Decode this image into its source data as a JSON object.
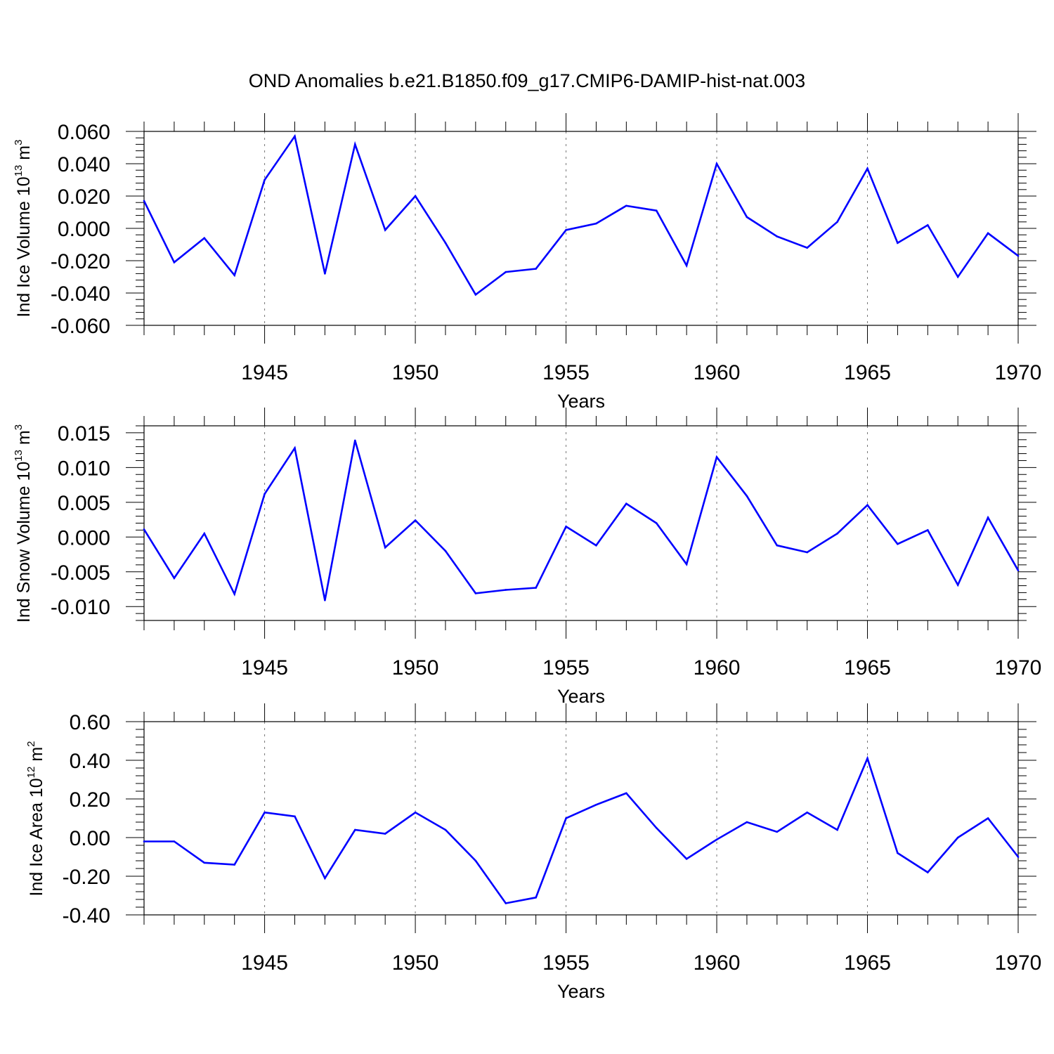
{
  "title": "OND Anomalies b.e21.B1850.f09_g17.CMIP6-DAMIP-hist-nat.003",
  "series_color": "#0000ff",
  "chart_data": [
    {
      "type": "line",
      "ylabel": {
        "base": "Ind Ice Volume 10",
        "exp": "13",
        "unit": " m",
        "unit_exp": "3"
      },
      "xlabel": "Years",
      "x": [
        1941,
        1942,
        1943,
        1944,
        1945,
        1946,
        1947,
        1948,
        1949,
        1950,
        1951,
        1952,
        1953,
        1954,
        1955,
        1956,
        1957,
        1958,
        1959,
        1960,
        1961,
        1962,
        1963,
        1964,
        1965,
        1966,
        1967,
        1968,
        1969,
        1970
      ],
      "values": [
        0.017,
        -0.021,
        -0.006,
        -0.029,
        0.03,
        0.057,
        -0.028,
        0.052,
        -0.001,
        0.02,
        -0.009,
        -0.041,
        -0.027,
        -0.025,
        -0.001,
        0.003,
        0.014,
        0.011,
        -0.023,
        0.04,
        0.007,
        -0.005,
        -0.012,
        0.004,
        0.037,
        -0.009,
        0.002,
        -0.03,
        -0.003,
        -0.017
      ],
      "xlim": [
        1941,
        1970
      ],
      "ylim": [
        -0.06,
        0.06
      ],
      "xticks": [
        1945,
        1950,
        1955,
        1960,
        1965,
        1970
      ],
      "yticks": [
        -0.06,
        -0.04,
        -0.02,
        0.0,
        0.02,
        0.04,
        0.06
      ],
      "yticklabels": [
        "-0.060",
        "-0.040",
        "-0.020",
        "0.000",
        "0.020",
        "0.040",
        "0.060"
      ],
      "grid": "dashed vertical at major x ticks"
    },
    {
      "type": "line",
      "ylabel": {
        "base": "Ind Snow Volume 10",
        "exp": "13",
        "unit": " m",
        "unit_exp": "3"
      },
      "xlabel": "Years",
      "x": [
        1941,
        1942,
        1943,
        1944,
        1945,
        1946,
        1947,
        1948,
        1949,
        1950,
        1951,
        1952,
        1953,
        1954,
        1955,
        1956,
        1957,
        1958,
        1959,
        1960,
        1961,
        1962,
        1963,
        1964,
        1965,
        1966,
        1967,
        1968,
        1969,
        1970
      ],
      "values": [
        0.0011,
        -0.0059,
        0.0005,
        -0.0082,
        0.0062,
        0.0128,
        -0.0091,
        0.0139,
        -0.0015,
        0.0024,
        -0.002,
        -0.0081,
        -0.0076,
        -0.0073,
        0.0015,
        -0.0012,
        0.0048,
        0.002,
        -0.0039,
        0.0115,
        0.0059,
        -0.0012,
        -0.0022,
        0.0005,
        0.0046,
        -0.001,
        0.001,
        -0.0069,
        0.0028,
        -0.0048
      ],
      "xlim": [
        1941,
        1970
      ],
      "ylim": [
        -0.012,
        0.016
      ],
      "xticks": [
        1945,
        1950,
        1955,
        1960,
        1965,
        1970
      ],
      "yticks": [
        -0.01,
        -0.005,
        0.0,
        0.005,
        0.01,
        0.015
      ],
      "yticklabels": [
        "-0.010",
        "-0.005",
        "0.000",
        "0.005",
        "0.010",
        "0.015"
      ],
      "grid": "dashed vertical at major x ticks"
    },
    {
      "type": "line",
      "ylabel": {
        "base": "Ind Ice Area 10",
        "exp": "12",
        "unit": " m",
        "unit_exp": "2"
      },
      "xlabel": "Years",
      "x": [
        1941,
        1942,
        1943,
        1944,
        1945,
        1946,
        1947,
        1948,
        1949,
        1950,
        1951,
        1952,
        1953,
        1954,
        1955,
        1956,
        1957,
        1958,
        1959,
        1960,
        1961,
        1962,
        1963,
        1964,
        1965,
        1966,
        1967,
        1968,
        1969,
        1970
      ],
      "values": [
        -0.02,
        -0.02,
        -0.13,
        -0.14,
        0.13,
        0.11,
        -0.21,
        0.04,
        0.02,
        0.13,
        0.04,
        -0.12,
        -0.34,
        -0.31,
        0.1,
        0.17,
        0.23,
        0.05,
        -0.11,
        -0.01,
        0.08,
        0.03,
        0.13,
        0.04,
        0.41,
        -0.08,
        -0.18,
        0.0,
        0.1,
        -0.1
      ],
      "xlim": [
        1941,
        1970
      ],
      "ylim": [
        -0.4,
        0.6
      ],
      "xticks": [
        1945,
        1950,
        1955,
        1960,
        1965,
        1970
      ],
      "yticks": [
        -0.4,
        -0.2,
        0.0,
        0.2,
        0.4,
        0.6
      ],
      "yticklabels": [
        "-0.40",
        "-0.20",
        "0.00",
        "0.20",
        "0.40",
        "0.60"
      ],
      "grid": "dashed vertical at major x ticks"
    }
  ]
}
